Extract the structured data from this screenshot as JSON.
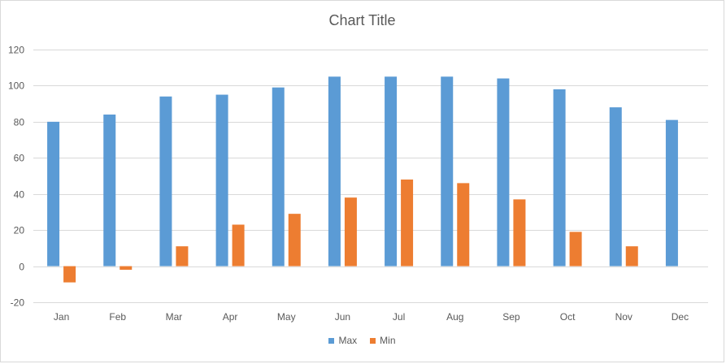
{
  "chart_data": {
    "type": "bar",
    "title": "Chart Title",
    "categories": [
      "Jan",
      "Feb",
      "Mar",
      "Apr",
      "May",
      "Jun",
      "Jul",
      "Aug",
      "Sep",
      "Oct",
      "Nov",
      "Dec"
    ],
    "series": [
      {
        "name": "Max",
        "color": "#5b9bd5",
        "values": [
          80,
          84,
          94,
          95,
          99,
          105,
          105,
          105,
          104,
          98,
          88,
          81
        ]
      },
      {
        "name": "Min",
        "color": "#ed7d31",
        "values": [
          -9,
          -2,
          11,
          23,
          29,
          38,
          48,
          46,
          37,
          19,
          11,
          null
        ]
      }
    ],
    "ylim": [
      -20,
      120
    ],
    "yticks": [
      -20,
      0,
      20,
      40,
      60,
      80,
      100,
      120
    ],
    "xlabel": "",
    "ylabel": "",
    "grid": true,
    "legend_position": "bottom"
  }
}
